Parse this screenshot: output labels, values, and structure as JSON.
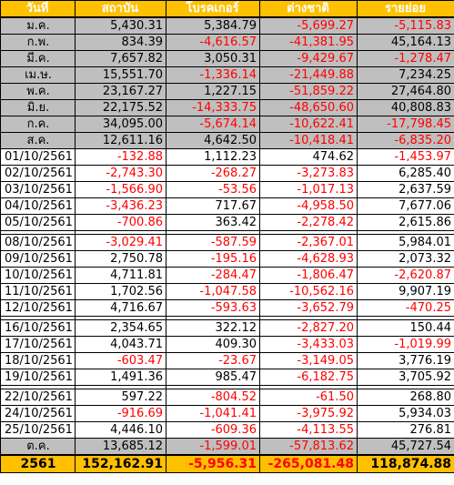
{
  "headers": [
    "วันที่",
    "สถาบัน",
    "โบรคเกอร์",
    "ต่างชาติ",
    "รายย่อย"
  ],
  "monthly": [
    [
      "ม.ค.",
      "5,430.31",
      "5,384.79",
      "-5,699.27",
      "-5,115.83"
    ],
    [
      "ก.พ.",
      "834.39",
      "-4,616.57",
      "-41,381.95",
      "45,164.13"
    ],
    [
      "มี.ค.",
      "7,657.82",
      "3,050.31",
      "-9,429.67",
      "-1,278.47"
    ],
    [
      "เม.ษ.",
      "15,551.70",
      "-1,336.14",
      "-21,449.88",
      "7,234.25"
    ],
    [
      "พ.ค.",
      "23,167.27",
      "1,227.15",
      "-51,859.22",
      "27,464.80"
    ],
    [
      "มิ.ย.",
      "22,175.52",
      "-14,333.75",
      "-48,650.60",
      "40,808.83"
    ],
    [
      "ก.ค.",
      "34,095.00",
      "-5,674.14",
      "-10,622.41",
      "-17,798.45"
    ],
    [
      "ส.ค.",
      "12,611.16",
      "4,642.50",
      "-10,418.41",
      "-6,835.20"
    ]
  ],
  "daily_a": [
    [
      "01/10/2561",
      "-132.88",
      "1,112.23",
      "474.62",
      "-1,453.97"
    ],
    [
      "02/10/2561",
      "-2,743.30",
      "-268.27",
      "-3,273.83",
      "6,285.40"
    ],
    [
      "03/10/2561",
      "-1,566.90",
      "-53.56",
      "-1,017.13",
      "2,637.59"
    ],
    [
      "04/10/2561",
      "-3,436.23",
      "717.67",
      "-4,958.50",
      "7,677.06"
    ],
    [
      "05/10/2561",
      "-700.86",
      "363.42",
      "-2,278.42",
      "2,615.86"
    ]
  ],
  "daily_b": [
    [
      "08/10/2561",
      "-3,029.41",
      "-587.59",
      "-2,367.01",
      "5,984.01"
    ],
    [
      "09/10/2561",
      "2,750.78",
      "-195.16",
      "-4,628.93",
      "2,073.32"
    ],
    [
      "10/10/2561",
      "4,711.81",
      "-284.47",
      "-1,806.47",
      "-2,620.87"
    ],
    [
      "11/10/2561",
      "1,702.56",
      "-1,047.58",
      "-10,562.16",
      "9,907.19"
    ],
    [
      "12/10/2561",
      "4,716.67",
      "-593.63",
      "-3,652.79",
      "-470.25"
    ]
  ],
  "daily_c": [
    [
      "16/10/2561",
      "2,354.65",
      "322.12",
      "-2,827.20",
      "150.44"
    ],
    [
      "17/10/2561",
      "4,043.71",
      "409.30",
      "-3,433.03",
      "-1,019.99"
    ],
    [
      "18/10/2561",
      "-603.47",
      "-23.67",
      "-3,149.05",
      "3,776.19"
    ],
    [
      "19/10/2561",
      "1,491.36",
      "985.47",
      "-6,182.75",
      "3,705.92"
    ]
  ],
  "daily_d": [
    [
      "22/10/2561",
      "597.22",
      "-804.52",
      "-61.50",
      "268.80"
    ],
    [
      "24/10/2561",
      "-916.69",
      "-1,041.41",
      "-3,975.92",
      "5,934.03"
    ],
    [
      "25/10/2561",
      "4,446.10",
      "-609.36",
      "-4,113.55",
      "276.81"
    ]
  ],
  "month_total": [
    "ต.ค.",
    "13,685.12",
    "-1,599.01",
    "-57,813.62",
    "45,727.54"
  ],
  "year_total": [
    "2561",
    "152,162.91",
    "-5,956.31",
    "-265,081.48",
    "118,874.88"
  ],
  "colors": {
    "header_bg": "#ffc000",
    "header_text": "#ffffff",
    "month_bg": "#bfbfbf",
    "negative": "#ff0000"
  }
}
